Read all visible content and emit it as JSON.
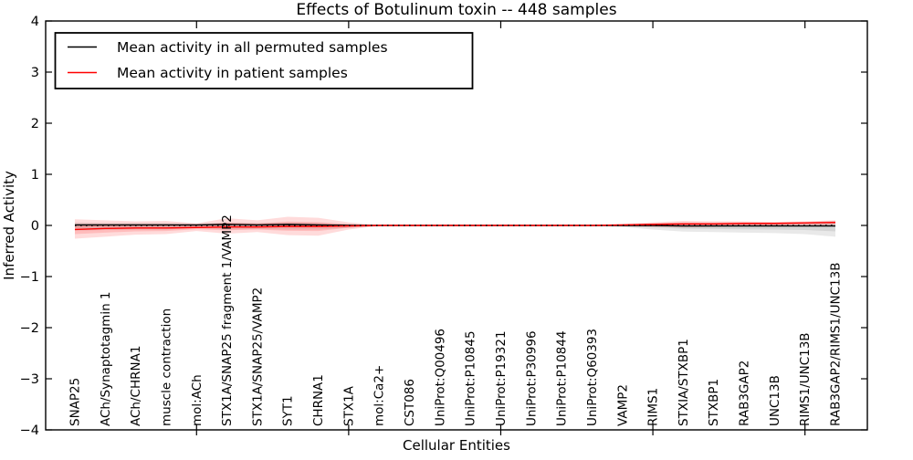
{
  "figure": {
    "title": "Effects of Botulinum toxin -- 448 samples",
    "xlabel": "Cellular Entities",
    "ylabel": "Inferred Activity"
  },
  "legend": {
    "position": "upper left",
    "entries": [
      {
        "label": "Mean activity in all permuted samples",
        "color": "#000000"
      },
      {
        "label": "Mean activity in patient samples",
        "color": "#ff0000"
      }
    ]
  },
  "chart_data": {
    "type": "line",
    "title": "Effects of Botulinum toxin -- 448 samples",
    "xlabel": "Cellular Entities",
    "ylabel": "Inferred Activity",
    "ylim": [
      -4,
      4
    ],
    "ytick_values": [
      4,
      3,
      2,
      1,
      0,
      -1,
      -2,
      -3,
      -4
    ],
    "ytick_labels": [
      "4",
      "3",
      "2",
      "1",
      "0",
      "−1",
      "−2",
      "−3",
      "−4"
    ],
    "grid": false,
    "legend_position": "upper left",
    "categories": [
      "SNAP25",
      "ACh/Synaptotagmin 1",
      "ACh/CHRNA1",
      "muscle contraction",
      "mol:ACh",
      "STX1A/SNAP25 fragment 1/VAMP2",
      "STX1A/SNAP25/VAMP2",
      "SYT1",
      "CHRNA1",
      "STX1A",
      "mol:Ca2+",
      "CST086",
      "UniProt:Q00496",
      "UniProt:P10845",
      "UniProt:P19321",
      "UniProt:P30996",
      "UniProt:P10844",
      "UniProt:Q60393",
      "VAMP2",
      "RIMS1",
      "STXIA/STXBP1",
      "STXBP1",
      "RAB3GAP2",
      "UNC13B",
      "RIMS1/UNC13B",
      "RAB3GAP2/RIMS1/UNC13B"
    ],
    "top_tick_indices": [
      4,
      9,
      14,
      19,
      24
    ],
    "series": [
      {
        "name": "Mean activity in all permuted samples",
        "color": "#000000",
        "band_color": "#555555",
        "values": [
          0.01,
          0.01,
          0.01,
          0.01,
          0.01,
          0.02,
          0.01,
          0.02,
          0.01,
          0,
          0,
          0,
          0,
          0,
          0,
          0,
          0,
          0,
          0,
          0,
          -0.01,
          -0.01,
          -0.01,
          -0.01,
          -0.01,
          -0.01
        ],
        "band_upper": [
          0.06,
          0.05,
          0.05,
          0.05,
          0.03,
          0.06,
          0.05,
          0.06,
          0.05,
          0.03,
          0.01,
          0.01,
          0.01,
          0.01,
          0.01,
          0.01,
          0.01,
          0.01,
          0.02,
          0.04,
          0.05,
          0.05,
          0.05,
          0.05,
          0.06,
          0.09
        ],
        "band_lower": [
          -0.1,
          -0.09,
          -0.08,
          -0.08,
          -0.05,
          -0.08,
          -0.07,
          -0.08,
          -0.08,
          -0.05,
          -0.01,
          -0.01,
          -0.01,
          -0.01,
          -0.01,
          -0.01,
          -0.01,
          -0.01,
          -0.03,
          -0.08,
          -0.12,
          -0.13,
          -0.14,
          -0.15,
          -0.17,
          -0.22
        ]
      },
      {
        "name": "Mean activity in patient samples",
        "color": "#ff0000",
        "band_color": "#ff0000",
        "values": [
          -0.08,
          -0.06,
          -0.05,
          -0.05,
          -0.04,
          -0.03,
          -0.03,
          -0.02,
          -0.02,
          -0.01,
          0,
          0,
          0,
          0,
          0,
          0,
          0,
          0,
          0.01,
          0.02,
          0.03,
          0.03,
          0.04,
          0.04,
          0.05,
          0.06
        ],
        "band_upper": [
          0.12,
          0.1,
          0.08,
          0.09,
          0.04,
          0.14,
          0.1,
          0.17,
          0.15,
          0.06,
          0.01,
          0.01,
          0.01,
          0.01,
          0.01,
          0.01,
          0.01,
          0.01,
          0.03,
          0.06,
          0.09,
          0.08,
          0.08,
          0.07,
          0.08,
          0.1
        ],
        "band_lower": [
          -0.26,
          -0.22,
          -0.18,
          -0.17,
          -0.11,
          -0.16,
          -0.13,
          -0.19,
          -0.2,
          -0.08,
          -0.01,
          -0.01,
          -0.01,
          -0.01,
          -0.01,
          -0.01,
          -0.01,
          -0.01,
          -0.02,
          -0.03,
          -0.04,
          -0.03,
          -0.02,
          -0.02,
          -0.01,
          0.01
        ]
      }
    ],
    "reference_line": {
      "y": 0,
      "style": "dotted",
      "color": "#000000"
    }
  },
  "colors": {
    "background": "#ffffff",
    "axis": "#000000",
    "permuted_line": "#000000",
    "patient_line": "#ff0000"
  }
}
